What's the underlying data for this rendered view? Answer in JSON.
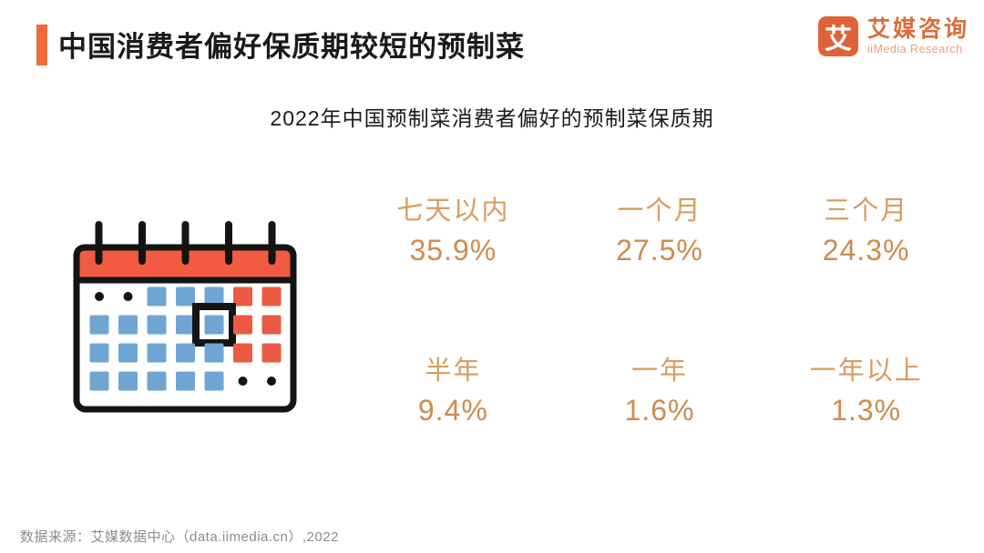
{
  "header": {
    "title": "中国消费者偏好保质期较短的预制菜",
    "accent_color": "#ED6A3B"
  },
  "logo": {
    "icon_char": "艾",
    "name_cn": "艾媒咨询",
    "name_en": "iiMedia Research",
    "brand_color": "#DD6B3C"
  },
  "chart": {
    "title": "2022年中国预制菜消费者偏好的预制菜保质期"
  },
  "chart_data": {
    "type": "table",
    "title": "2022年中国预制菜消费者偏好的预制菜保质期",
    "categories": [
      "七天以内",
      "一个月",
      "三个月",
      "半年",
      "一年",
      "一年以上"
    ],
    "values": [
      35.9,
      27.5,
      24.3,
      9.4,
      1.6,
      1.3
    ],
    "unit": "%",
    "value_color": "#CE8B4C",
    "label_color": "#D89C62",
    "layout": "2 rows x 3 columns of stat blocks, calendar illustration at left"
  },
  "stats": [
    {
      "label": "七天以内",
      "value": "35.9%"
    },
    {
      "label": "一个月",
      "value": "27.5%"
    },
    {
      "label": "三个月",
      "value": "24.3%"
    },
    {
      "label": "半年",
      "value": "9.4%"
    },
    {
      "label": "一年",
      "value": "1.6%"
    },
    {
      "label": "一年以上",
      "value": "1.3%"
    }
  ],
  "calendar": {
    "pattern": [
      "oobbbrr",
      "bbbbBrr",
      "bbbbbrr",
      "bbbbboo"
    ],
    "colors": {
      "blue": "#6FA5D2",
      "red": "#EB5B43",
      "header": "#F05B41",
      "outline": "#141414",
      "body": "#ffffff"
    }
  },
  "footer": {
    "source": "数据来源：艾媒数据中心（data.iimedia.cn）,2022"
  }
}
